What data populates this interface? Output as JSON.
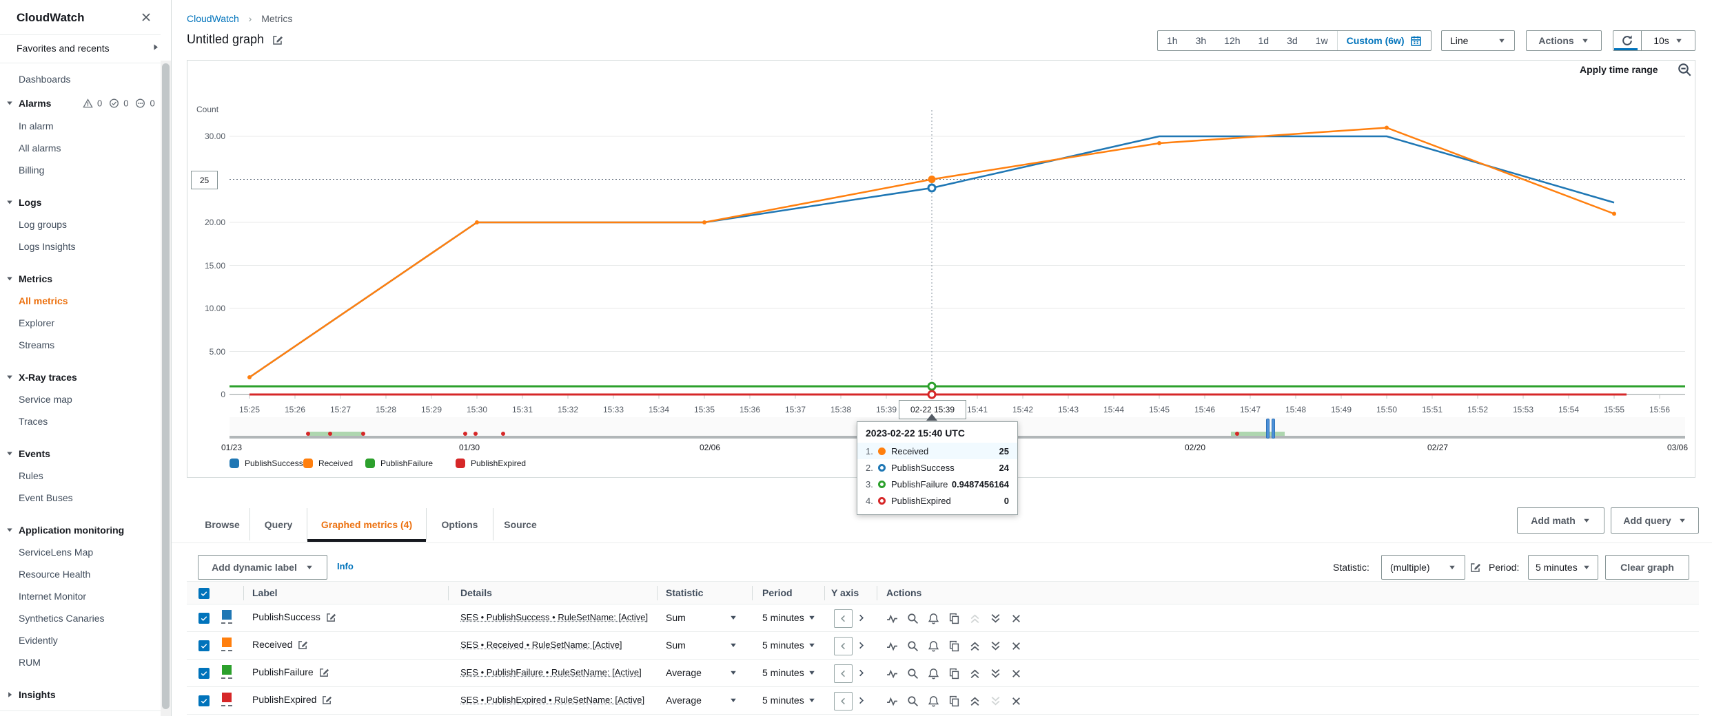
{
  "sidebar": {
    "title": "CloudWatch",
    "favorites": "Favorites and recents",
    "alarm_badges": [
      {
        "icon": "warning-triangle",
        "count": "0"
      },
      {
        "icon": "check-circle",
        "count": "0"
      },
      {
        "icon": "insufficient-circle",
        "count": "0"
      }
    ],
    "nav": [
      {
        "type": "link",
        "label": "Dashboards"
      },
      {
        "type": "header",
        "label": "Alarms",
        "badges": true
      },
      {
        "type": "link",
        "label": "In alarm"
      },
      {
        "type": "link",
        "label": "All alarms"
      },
      {
        "type": "link",
        "label": "Billing"
      },
      {
        "type": "header",
        "label": "Logs"
      },
      {
        "type": "link",
        "label": "Log groups"
      },
      {
        "type": "link",
        "label": "Logs Insights"
      },
      {
        "type": "header",
        "label": "Metrics"
      },
      {
        "type": "link",
        "label": "All metrics",
        "active": true
      },
      {
        "type": "link",
        "label": "Explorer"
      },
      {
        "type": "link",
        "label": "Streams"
      },
      {
        "type": "header",
        "label": "X-Ray traces"
      },
      {
        "type": "link",
        "label": "Service map"
      },
      {
        "type": "link",
        "label": "Traces"
      },
      {
        "type": "header",
        "label": "Events"
      },
      {
        "type": "link",
        "label": "Rules"
      },
      {
        "type": "link",
        "label": "Event Buses"
      },
      {
        "type": "header",
        "label": "Application monitoring"
      },
      {
        "type": "link",
        "label": "ServiceLens Map"
      },
      {
        "type": "link",
        "label": "Resource Health"
      },
      {
        "type": "link",
        "label": "Internet Monitor"
      },
      {
        "type": "link",
        "label": "Synthetics Canaries"
      },
      {
        "type": "link",
        "label": "Evidently"
      },
      {
        "type": "link",
        "label": "RUM"
      },
      {
        "type": "header",
        "label": "Insights",
        "collapsed": true
      }
    ]
  },
  "breadcrumb": {
    "items": [
      "CloudWatch",
      "Metrics"
    ]
  },
  "page": {
    "title": "Untitled graph"
  },
  "toolbar": {
    "ranges": [
      "1h",
      "3h",
      "12h",
      "1d",
      "3d",
      "1w"
    ],
    "custom_range": "Custom (6w)",
    "chart_type": "Line",
    "actions": "Actions",
    "refresh_interval": "10s"
  },
  "graph": {
    "apply_time_range": "Apply time range",
    "y_axis_title": "Count",
    "hover_value_label": "25",
    "cursor_tick_label": "02-22 15:39"
  },
  "chart_data": {
    "type": "line",
    "title": "Untitled graph",
    "ylabel": "Count",
    "ylim": [
      0,
      32
    ],
    "grid": true,
    "legend_position": "bottom",
    "y_ticks": [
      {
        "label": "30.00",
        "value": 30
      },
      {
        "label": "20.00",
        "value": 20
      },
      {
        "label": "15.00",
        "value": 15
      },
      {
        "label": "10.00",
        "value": 10
      },
      {
        "label": "5.00",
        "value": 5
      },
      {
        "label": "0",
        "value": 0
      }
    ],
    "x_tick_labels": [
      "15:25",
      "15:26",
      "15:27",
      "15:28",
      "15:29",
      "15:30",
      "15:31",
      "15:32",
      "15:33",
      "15:34",
      "15:35",
      "15:36",
      "15:37",
      "15:38",
      "15:39",
      "15:40",
      "15:41",
      "15:42",
      "15:43",
      "15:44",
      "15:45",
      "15:46",
      "15:47",
      "15:48",
      "15:49",
      "15:50",
      "15:51",
      "15:52",
      "15:53",
      "15:54",
      "15:55",
      "15:56"
    ],
    "cursor_index": 15,
    "hover": {
      "time": "2023-02-22 15:40 UTC",
      "value": 25
    },
    "x_minutes": [
      0,
      5,
      10,
      15,
      20,
      25,
      30
    ],
    "series": [
      {
        "name": "PublishSuccess",
        "color": "#1f77b4",
        "values": [
          2,
          20,
          20,
          24,
          30,
          30,
          22.3
        ]
      },
      {
        "name": "Received",
        "color": "#ff7f0e",
        "values": [
          2,
          20,
          20,
          25,
          29.2,
          31,
          21
        ],
        "markers": true
      },
      {
        "name": "PublishFailure",
        "color": "#2ca02c",
        "constant": 0.949,
        "span": "full"
      },
      {
        "name": "PublishExpired",
        "color": "#d62728",
        "constant": 0,
        "span": "data"
      }
    ]
  },
  "timeline": {
    "dates": [
      "01/23",
      "01/30",
      "02/06",
      "02/13",
      "02/20",
      "02/27",
      "03/06"
    ],
    "activity": [
      {
        "from": 0.054,
        "to": 0.092,
        "dots": [
          0.054,
          0.069,
          0.092
        ]
      },
      {
        "dots": [
          0.162,
          0.169,
          0.188
        ]
      },
      {
        "from": 0.688,
        "to": 0.725,
        "dots": [
          0.692
        ]
      }
    ],
    "brush": 0.715
  },
  "tooltip": {
    "title": "2023-02-22 15:40 UTC",
    "rows": [
      {
        "num": "1.",
        "name": "Received",
        "value": "25",
        "color": "#ff7f0e",
        "filled": true,
        "highlight": true
      },
      {
        "num": "2.",
        "name": "PublishSuccess",
        "value": "24",
        "color": "#1f77b4",
        "filled": false
      },
      {
        "num": "3.",
        "name": "PublishFailure",
        "value": "0.9487456164",
        "color": "#2ca02c",
        "filled": false
      },
      {
        "num": "4.",
        "name": "PublishExpired",
        "value": "0",
        "color": "#d62728",
        "filled": false
      }
    ]
  },
  "tabs": {
    "items": [
      "Browse",
      "Query",
      "Graphed metrics (4)",
      "Options",
      "Source"
    ],
    "active_index": 2
  },
  "panel": {
    "add_math": "Add math",
    "add_query": "Add query",
    "add_dynamic_label": "Add dynamic label",
    "info": "Info",
    "statistic_label": "Statistic:",
    "statistic_value": "(multiple)",
    "period_label": "Period:",
    "period_value": "5 minutes",
    "clear_graph": "Clear graph"
  },
  "table": {
    "headers": [
      "Label",
      "Details",
      "Statistic",
      "Period",
      "Y axis",
      "Actions"
    ],
    "rows": [
      {
        "label": "PublishSuccess",
        "details": "SES • PublishSuccess • RuleSetName: [Active]",
        "statistic": "Sum",
        "period": "5 minutes",
        "color": "#1f77b4",
        "checked": true,
        "move_up_disabled": true,
        "move_down_disabled": false
      },
      {
        "label": "Received",
        "details": "SES • Received • RuleSetName: [Active]",
        "statistic": "Sum",
        "period": "5 minutes",
        "color": "#ff7f0e",
        "checked": true,
        "move_up_disabled": false,
        "move_down_disabled": false
      },
      {
        "label": "PublishFailure",
        "details": "SES • PublishFailure • RuleSetName: [Active]",
        "statistic": "Average",
        "period": "5 minutes",
        "color": "#2ca02c",
        "checked": true,
        "move_up_disabled": false,
        "move_down_disabled": false
      },
      {
        "label": "PublishExpired",
        "details": "SES • PublishExpired • RuleSetName: [Active]",
        "statistic": "Average",
        "period": "5 minutes",
        "color": "#d62728",
        "checked": true,
        "move_up_disabled": false,
        "move_down_disabled": true
      }
    ]
  }
}
